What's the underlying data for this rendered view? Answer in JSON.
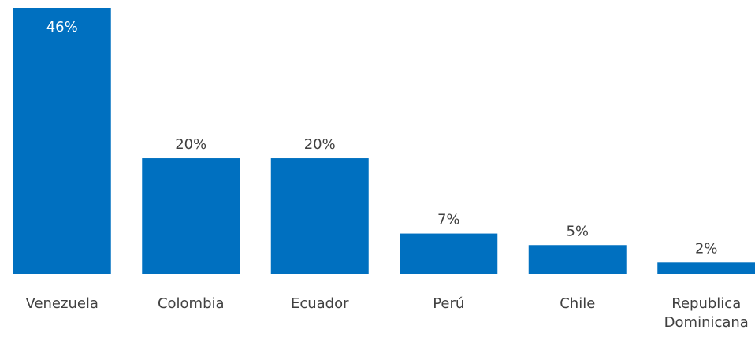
{
  "chart_data": {
    "type": "bar",
    "categories": [
      "Venezuela",
      "Colombia",
      "Ecuador",
      "Perú",
      "Chile",
      "Republica Dominicana"
    ],
    "values": [
      46,
      20,
      20,
      7,
      5,
      2
    ],
    "value_labels": [
      "46%",
      "20%",
      "20%",
      "7%",
      "5%",
      "2%"
    ],
    "color": "#0070c0"
  }
}
